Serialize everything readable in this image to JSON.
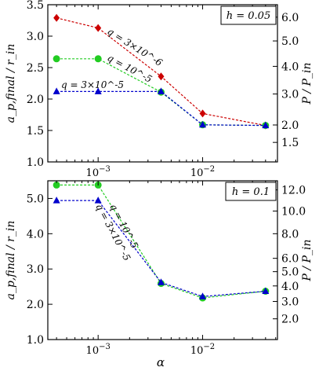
{
  "figure": {
    "shared_xlabel": "α"
  },
  "chart_data": [
    {
      "type": "line",
      "title": "h = 0.05",
      "xlabel": "α",
      "ylabel": "a_p,final / r_in",
      "ylabel_right": "P / P_in",
      "xscale": "log",
      "xlim": [
        0.00033,
        0.052
      ],
      "ylim": [
        1.0,
        3.5
      ],
      "x_tick_labels": [
        {
          "value": 0.001,
          "label": "10^-3"
        },
        {
          "value": 0.01,
          "label": "10^-2"
        }
      ],
      "y_ticks": [
        1.0,
        1.5,
        2.0,
        2.5,
        3.0,
        3.5
      ],
      "y_tick_labels": [
        "1.0",
        "1.5",
        "2.0",
        "2.5",
        "3.0",
        "3.5"
      ],
      "right_ticks": [
        1.5,
        2.0,
        3.0,
        4.0,
        5.0,
        6.0
      ],
      "right_tick_labels": [
        "1.5",
        "2.0",
        "3.0",
        "4.0",
        "5.0",
        "6.0"
      ],
      "grid": false,
      "series": [
        {
          "name": "q = 3×10^-6",
          "color": "#cc0000",
          "marker": "diamond",
          "x": [
            0.0004,
            0.001,
            0.004,
            0.01,
            0.04
          ],
          "y": [
            3.29,
            3.13,
            2.36,
            1.77,
            1.58
          ]
        },
        {
          "name": "q = 10^-5",
          "color": "#22cc22",
          "marker": "circle",
          "x": [
            0.0004,
            0.001,
            0.004,
            0.01,
            0.04
          ],
          "y": [
            2.64,
            2.64,
            2.11,
            1.59,
            1.58
          ]
        },
        {
          "name": "q = 3×10^-5",
          "color": "#0000cc",
          "marker": "triangle",
          "x": [
            0.0004,
            0.001,
            0.004,
            0.01,
            0.04
          ],
          "y": [
            2.12,
            2.12,
            2.12,
            1.59,
            1.58
          ]
        }
      ]
    },
    {
      "type": "line",
      "title": "h = 0.1",
      "xlabel": "α",
      "ylabel": "a_p,final / r_in",
      "ylabel_right": "P / P_in",
      "xscale": "log",
      "xlim": [
        0.00033,
        0.052
      ],
      "ylim": [
        1.0,
        5.5
      ],
      "x_tick_labels": [
        {
          "value": 0.001,
          "label": "10^-3"
        },
        {
          "value": 0.01,
          "label": "10^-2"
        }
      ],
      "y_ticks": [
        1.0,
        2.0,
        3.0,
        4.0,
        5.0
      ],
      "y_tick_labels": [
        "1.0",
        "2.0",
        "3.0",
        "4.0",
        "5.0"
      ],
      "right_ticks": [
        2.0,
        3.0,
        4.0,
        5.0,
        6.0,
        8.0,
        10.0,
        12.0
      ],
      "right_tick_labels": [
        "2.0",
        "3.0",
        "4.0",
        "5.0",
        "6.0",
        "8.0",
        "10.0",
        "12.0"
      ],
      "grid": false,
      "series": [
        {
          "name": "q = 10^-5",
          "color": "#22cc22",
          "marker": "circle",
          "x": [
            0.0004,
            0.001,
            0.004,
            0.01,
            0.04
          ],
          "y": [
            5.38,
            5.38,
            2.59,
            2.18,
            2.37
          ]
        },
        {
          "name": "q = 3×10^-5",
          "color": "#0000cc",
          "marker": "triangle",
          "x": [
            0.0004,
            0.001,
            0.004,
            0.01,
            0.04
          ],
          "y": [
            4.94,
            4.94,
            2.62,
            2.22,
            2.37
          ]
        }
      ]
    }
  ]
}
